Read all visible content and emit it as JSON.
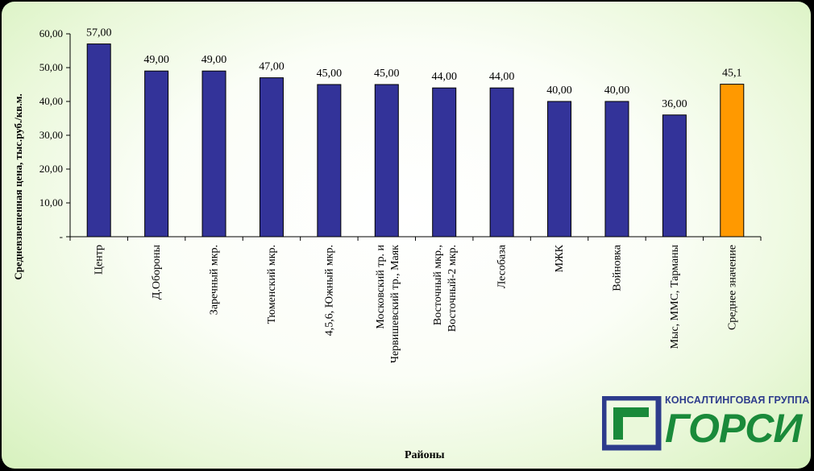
{
  "chart_data": {
    "type": "bar",
    "title": "",
    "xlabel": "Районы",
    "ylabel": "Средневзвешенная цена, тыс.руб./кв.м.",
    "ylim": [
      0,
      60
    ],
    "yticks": [
      0,
      10,
      20,
      30,
      40,
      50,
      60
    ],
    "ytick_labels": [
      "-",
      "10,00",
      "20,00",
      "30,00",
      "40,00",
      "50,00",
      "60,00"
    ],
    "categories": [
      "Центр",
      "Д.Обороны",
      "Заречный мкр.",
      "Тюменский мкр.",
      "4,5,6, Южный мкр.",
      "Московский тр. и Червишевский тр., Маяк",
      "Восточный мкр., Восточный-2 мкр.",
      "Лесобаза",
      "МЖК",
      "Войновка",
      "Мыс, ММС, Тарманы",
      "Среднее значение"
    ],
    "values": [
      57,
      49,
      49,
      47,
      45,
      45,
      44,
      44,
      40,
      40,
      36,
      45.1
    ],
    "data_labels": [
      "57,00",
      "49,00",
      "49,00",
      "47,00",
      "45,00",
      "45,00",
      "44,00",
      "44,00",
      "40,00",
      "40,00",
      "36,00",
      "45,1"
    ],
    "colors": [
      "#333399",
      "#333399",
      "#333399",
      "#333399",
      "#333399",
      "#333399",
      "#333399",
      "#333399",
      "#333399",
      "#333399",
      "#333399",
      "#ff9900"
    ],
    "grid": false,
    "legend": "none"
  },
  "logo": {
    "caption": "КОНСАЛТИНГОВАЯ ГРУППА",
    "word": "ГОРСИ"
  }
}
